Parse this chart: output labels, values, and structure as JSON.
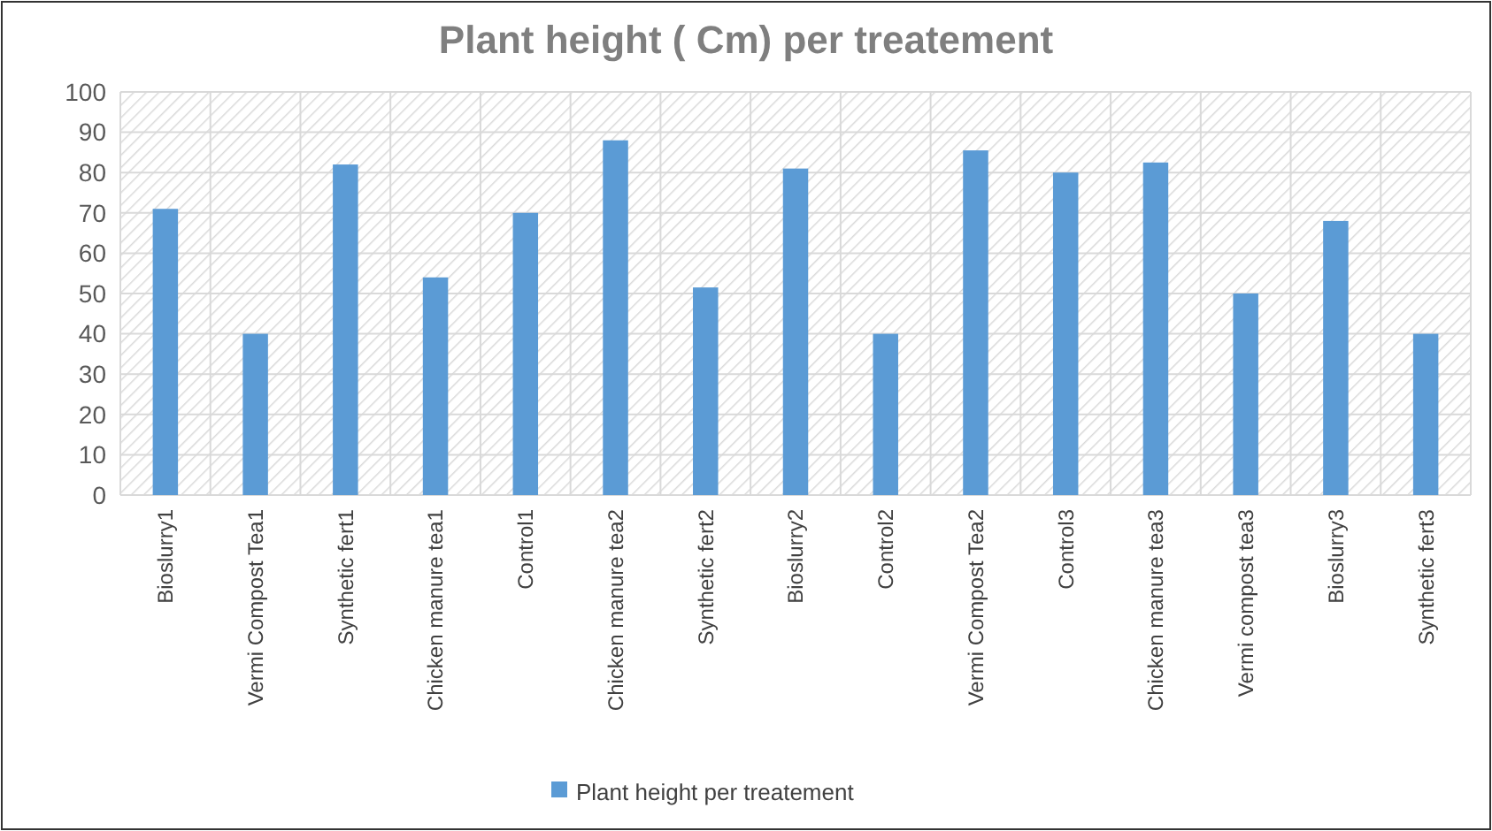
{
  "chart_data": {
    "type": "bar",
    "title": "Plant height ( Cm) per treatement",
    "categories": [
      "Bioslurry1",
      "Vermi Compost Tea1",
      "Synthetic fert1",
      "Chicken manure tea1",
      "Control1",
      "Chicken manure tea2",
      "Synthetic fert2",
      "Bioslurry2",
      "Control2",
      "Vermi Compost Tea2",
      "Control3",
      "Chicken manure tea3",
      "Vermi compost tea3",
      "Bioslurry3",
      "Synthetic fert3"
    ],
    "series": [
      {
        "name": "Plant height per treatement",
        "color": "#5b9bd5",
        "values": [
          71,
          40,
          82,
          54,
          70,
          88,
          51.5,
          81,
          40,
          85.5,
          80,
          82.5,
          50,
          68,
          40
        ]
      }
    ],
    "ylim": [
      0,
      100
    ],
    "yticks": [
      0,
      10,
      20,
      30,
      40,
      50,
      60,
      70,
      80,
      90,
      100
    ],
    "grid": true,
    "legend": "bottom"
  }
}
